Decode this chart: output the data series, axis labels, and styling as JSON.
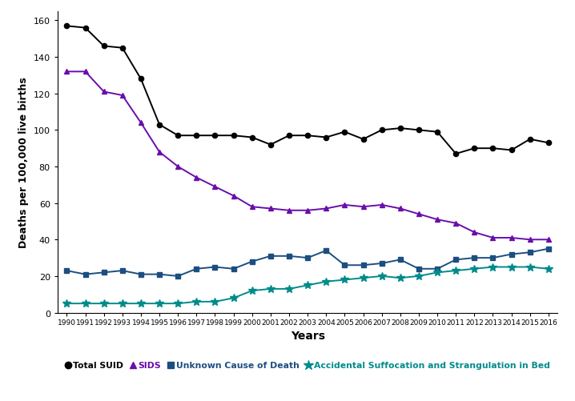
{
  "years": [
    1990,
    1991,
    1992,
    1993,
    1994,
    1995,
    1996,
    1997,
    1998,
    1999,
    2000,
    2001,
    2002,
    2003,
    2004,
    2005,
    2006,
    2007,
    2008,
    2009,
    2010,
    2011,
    2012,
    2013,
    2014,
    2015,
    2016
  ],
  "total_suid": [
    157,
    156,
    146,
    145,
    128,
    103,
    97,
    97,
    97,
    97,
    96,
    92,
    97,
    97,
    96,
    99,
    95,
    100,
    101,
    100,
    99,
    87,
    90,
    90,
    89,
    95,
    93
  ],
  "sids": [
    132,
    132,
    121,
    119,
    104,
    88,
    80,
    74,
    69,
    64,
    58,
    57,
    56,
    56,
    57,
    59,
    58,
    59,
    57,
    54,
    51,
    49,
    44,
    41,
    41,
    40,
    40
  ],
  "unknown": [
    23,
    21,
    22,
    23,
    21,
    21,
    20,
    24,
    25,
    24,
    28,
    31,
    31,
    30,
    34,
    26,
    26,
    27,
    29,
    24,
    24,
    29,
    30,
    30,
    32,
    33,
    35
  ],
  "assb": [
    5,
    5,
    5,
    5,
    5,
    5,
    5,
    6,
    6,
    8,
    12,
    13,
    13,
    15,
    17,
    18,
    19,
    20,
    19,
    20,
    22,
    23,
    24,
    25,
    25,
    25,
    24
  ],
  "total_suid_color": "#000000",
  "sids_color": "#6A0DAD",
  "unknown_color": "#1C4E80",
  "assb_color": "#008B8B",
  "ylabel": "Deaths per 100,000 live births",
  "xlabel": "Years",
  "ylim": [
    0,
    165
  ],
  "yticks": [
    0,
    20,
    40,
    60,
    80,
    100,
    120,
    140,
    160
  ],
  "legend_labels": [
    "Total SUID",
    "SIDS",
    "Unknown Cause of Death",
    "Accidental Suffocation and Strangulation in Bed"
  ],
  "legend_text_colors": [
    "#000000",
    "#6A0DAD",
    "#1C4E80",
    "#008B8B"
  ],
  "background_color": "#ffffff",
  "linewidth": 1.4,
  "markersize": 4.5
}
